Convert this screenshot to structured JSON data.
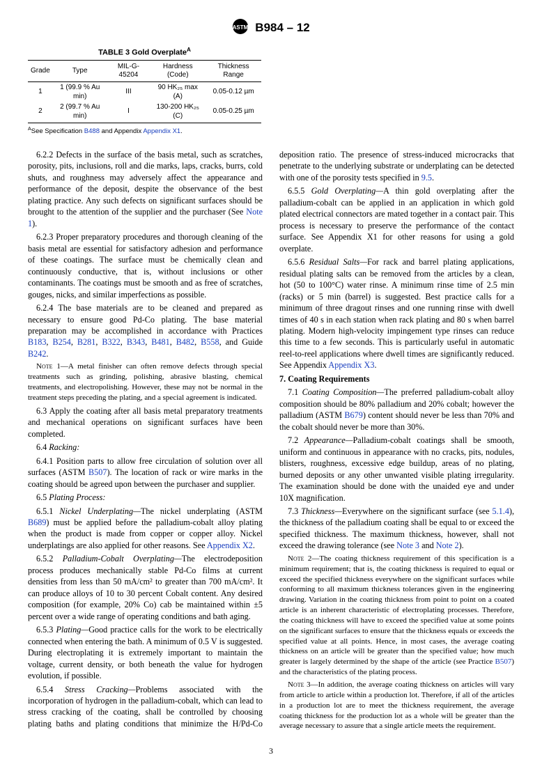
{
  "header": {
    "title": "B984 – 12"
  },
  "table": {
    "title": "TABLE 3 Gold Overplate",
    "title_sup": "A",
    "cols": [
      "Grade",
      "Type",
      "MIL-G-45204",
      "Hardness (Code)",
      "Thickness Range"
    ],
    "rows": [
      [
        "1",
        "1 (99.9 % Au min)",
        "III",
        "90 HK₂₅ max (A)",
        "0.05-0.12 µm"
      ],
      [
        "2",
        "2 (99.7 % Au min)",
        "I",
        "130-200 HK₂₅ (C)",
        "0.05-0.25 µm"
      ]
    ],
    "footnote_label": "A",
    "footnote_pre": "See Specification ",
    "footnote_ref1": "B488",
    "footnote_mid": " and Appendix ",
    "footnote_ref2": "Appendix X1",
    "footnote_post": "."
  },
  "p622": "6.2.2 Defects in the surface of the basis metal, such as scratches, porosity, pits, inclusions, roll and die marks, laps, cracks, burrs, cold shuts, and roughness may adversely affect the appearance and performance of the deposit, despite the observance of the best plating practice. Any such defects on significant surfaces should be brought to the attention of the supplier and the purchaser (See ",
  "p622_ref": "Note 1",
  "p622_end": ").",
  "p623": "6.2.3 Proper preparatory procedures and thorough cleaning of the basis metal are essential for satisfactory adhesion and performance of these coatings. The surface must be chemically clean and continuously conductive, that is, without inclusions or other contaminants. The coatings must be smooth and as free of scratches, gouges, nicks, and similar imperfections as possible.",
  "p624_pre": "6.2.4 The base materials are to be cleaned and prepared as necessary to ensure good Pd-Co plating. The base material preparation may be accomplished in accordance with Practices ",
  "p624_refs": [
    "B183",
    "B254",
    "B281",
    "B322",
    "B343",
    "B481",
    "B482",
    "B558"
  ],
  "p624_mid": ", and Guide ",
  "p624_lastref": "B242",
  "p624_end": ".",
  "note1_label": "Note 1—",
  "note1": "A metal finisher can often remove defects through special treatments such as grinding, polishing, abrasive blasting, chemical treatments, and electropolishing. However, these may not be normal in the treatment steps preceding the plating, and a special agreement is indicated.",
  "p63": "6.3 Apply the coating after all basis metal preparatory treatments and mechanical operations on significant surfaces have been completed.",
  "h64": "6.4 ",
  "h64r": "Racking:",
  "p641_pre": "6.4.1 Position parts to allow free circulation of solution over all surfaces (ASTM ",
  "p641_ref": "B507",
  "p641_post": "). The location of rack or wire marks in the coating should be agreed upon between the purchaser and supplier.",
  "h65": "6.5 ",
  "h65r": "Plating Process:",
  "p651_label": "6.5.1 ",
  "p651_runin": "Nickel Underplating—",
  "p651_pre": "The nickel underplating (ASTM ",
  "p651_ref": "B689",
  "p651_mid": ") must be applied before the palladium-cobalt alloy plating when the product is made from copper or copper alloy. Nickel underplatings are also applied for other reasons. See ",
  "p651_ref2": "Appendix X2",
  "p651_end": ".",
  "p652_label": "6.5.2 ",
  "p652_runin": "Palladium-Cobalt Overplating—",
  "p652": "The electrodeposition process produces mechanically stable Pd-Co films at current densities from less than 50 mA/cm² to greater than 700 mA/cm². It can produce alloys of 10 to 30 percent Cobalt content. Any desired composition (for example, 20% Co) cab be maintained within ±5 percent over a wide range of operating conditions and bath aging.",
  "p653_label": "6.5.3 ",
  "p653_runin": "Plating—",
  "p653": "Good practice calls for the work to be electrically connected when entering the bath. A minimum of 0.5 V is suggested. During electroplating it is extremely important to maintain the voltage, current density, or both beneath the value for hydrogen evolution, if possible.",
  "p654_label": "6.5.4 ",
  "p654_runin": "Stress Cracking—",
  "p654_pre": "Problems associated with the incorporation of hydrogen in the palladium-cobalt, which can lead to stress cracking of the coating, shall be controlled by choosing plating baths and plating conditions that minimize the H/Pd-Co deposition ratio. The presence of stress-induced microcracks that penetrate to the underlying substrate or underplating can be detected with one of the porosity tests specified in ",
  "p654_ref": "9.5",
  "p654_end": ".",
  "p655_label": "6.5.5 ",
  "p655_runin": "Gold Overplating—",
  "p655": "A thin gold overplating after the palladium-cobalt can be applied in an application in which gold plated electrical connectors are mated together in a contact pair. This process is necessary to preserve the performance of the contact surface. See Appendix X1 for other reasons for using a gold overplate.",
  "p656_label": "6.5.6 ",
  "p656_runin": "Residual Salts—",
  "p656_pre": "For rack and barrel plating applications, residual plating salts can be removed from the articles by a clean, hot (50 to 100°C) water rinse. A minimum rinse time of 2.5 min (racks) or 5 min (barrel) is suggested. Best practice calls for a minimum of three dragout rinses and one running rinse with dwell times of 40 s in each station when rack plating and 80 s when barrel plating. Modern high-velocity impingement type rinses can reduce this time to a few seconds. This is particularly useful in automatic reel-to-reel applications where dwell times are significantly reduced. See Appendix ",
  "p656_ref": "Appendix X3",
  "p656_end": ".",
  "h7": "7. Coating Requirements",
  "p71_label": "7.1 ",
  "p71_runin": "Coating Composition—",
  "p71_pre": "The preferred palladium-cobalt alloy composition should be 80% palladium and 20% cobalt; however the palladium (ASTM ",
  "p71_ref": "B679",
  "p71_post": ") content should never be less than 70% and the cobalt should never be more than 30%.",
  "p72_label": "7.2 ",
  "p72_runin": "Appearance—",
  "p72": "Palladium-cobalt coatings shall be smooth, uniform and continuous in appearance with no cracks, pits, nodules, blisters, roughness, excessive edge buildup, areas of no plating, burned deposits or any other unwanted visible plating irregularity. The examination should be done with the unaided eye and under 10X magnification.",
  "p73_label": "7.3 ",
  "p73_runin": "Thickness—",
  "p73_pre": "Everywhere on the significant surface (see ",
  "p73_ref1": "5.1.4",
  "p73_mid": "), the thickness of the palladium coating shall be equal to or exceed the specified thickness. The maximum thickness, however, shall not exceed the drawing tolerance (see ",
  "p73_ref2": "Note 3",
  "p73_and": " and ",
  "p73_ref3": "Note 2",
  "p73_end": ").",
  "note2_label": "Note 2—",
  "note2_pre": "The coating thickness requirement of this specification is a minimum requirement; that is, the coating thickness is required to equal or exceed the specified thickness everywhere on the significant surfaces while conforming to all maximum thickness tolerances given in the engineering drawing. Variation in the coating thickness from point to point on a coated article is an inherent characteristic of electroplating processes. Therefore, the coating thickness will have to exceed the specified value at some points on the significant surfaces to ensure that the thickness equals or exceeds the specified value at all points. Hence, in most cases, the average coating thickness on an article will be greater than the specified value; how much greater is largely determined by the shape of the article (see Practice ",
  "note2_ref": "B507",
  "note2_post": ") and the characteristics of the plating process.",
  "note3_label": "Note 3—",
  "note3": "In addition, the average coating thickness on articles will vary from article to article within a production lot. Therefore, if all of the articles in a production lot are to meet the thickness requirement, the average coating thickness for the production lot as a whole will be greater than the average necessary to assure that a single article meets the requirement.",
  "pagenum": "3"
}
